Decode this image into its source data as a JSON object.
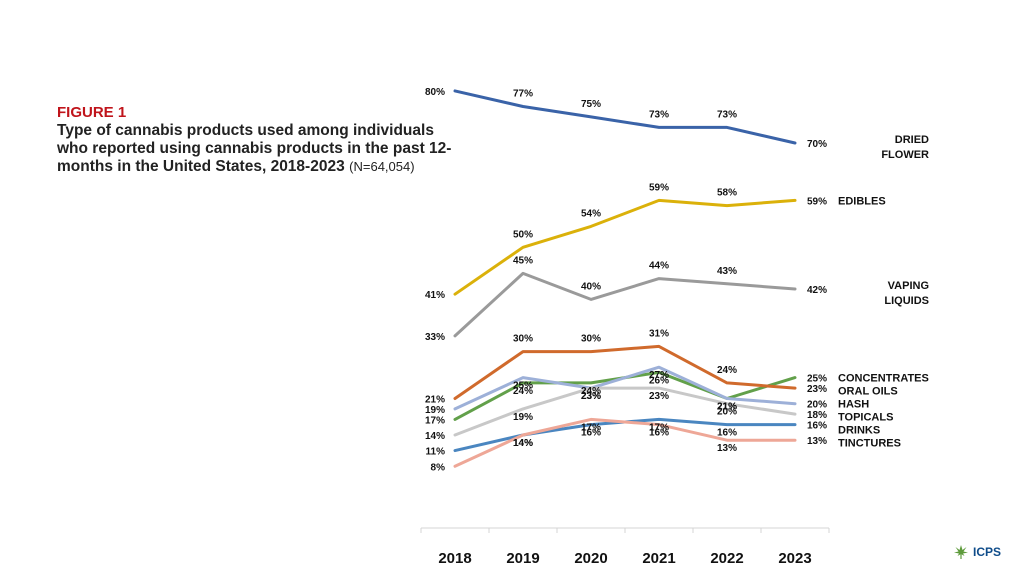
{
  "figure": {
    "label": "FIGURE 1",
    "title": "Type of cannabis products used among individuals who reported using cannabis products in the past 12-months in the United States, 2018-2023",
    "sample": "(N=64,054)"
  },
  "logo": {
    "text": "ICPS",
    "icon": "cannabis-leaf-icon"
  },
  "chart_data": {
    "type": "line",
    "categories": [
      "2018",
      "2019",
      "2020",
      "2021",
      "2022",
      "2023"
    ],
    "ylim": [
      0,
      84
    ],
    "series": [
      {
        "name": "DRIED FLOWER",
        "color": "#3a63a8",
        "values": [
          80,
          77,
          75,
          73,
          73,
          70
        ]
      },
      {
        "name": "EDIBLES",
        "color": "#dbb10a",
        "values": [
          41,
          50,
          54,
          59,
          58,
          59
        ]
      },
      {
        "name": "VAPING LIQUIDS",
        "color": "#9a9a9a",
        "values": [
          33,
          45,
          40,
          44,
          43,
          42
        ]
      },
      {
        "name": "CONCENTRATES",
        "color": "#62a04a",
        "values": [
          17,
          24,
          24,
          26,
          21,
          25
        ]
      },
      {
        "name": "ORAL OILS",
        "color": "#d06a2c",
        "values": [
          21,
          30,
          30,
          31,
          24,
          23
        ]
      },
      {
        "name": "HASH",
        "color": "#9db0d8",
        "values": [
          19,
          25,
          23,
          27,
          21,
          20
        ]
      },
      {
        "name": "TOPICALS",
        "color": "#c8c8c8",
        "values": [
          14,
          19,
          23,
          23,
          20,
          18
        ]
      },
      {
        "name": "DRINKS",
        "color": "#4a86c0",
        "values": [
          11,
          14,
          16,
          17,
          16,
          16
        ]
      },
      {
        "name": "TINCTURES",
        "color": "#eea797",
        "values": [
          8,
          14,
          17,
          16,
          13,
          13
        ]
      }
    ]
  }
}
